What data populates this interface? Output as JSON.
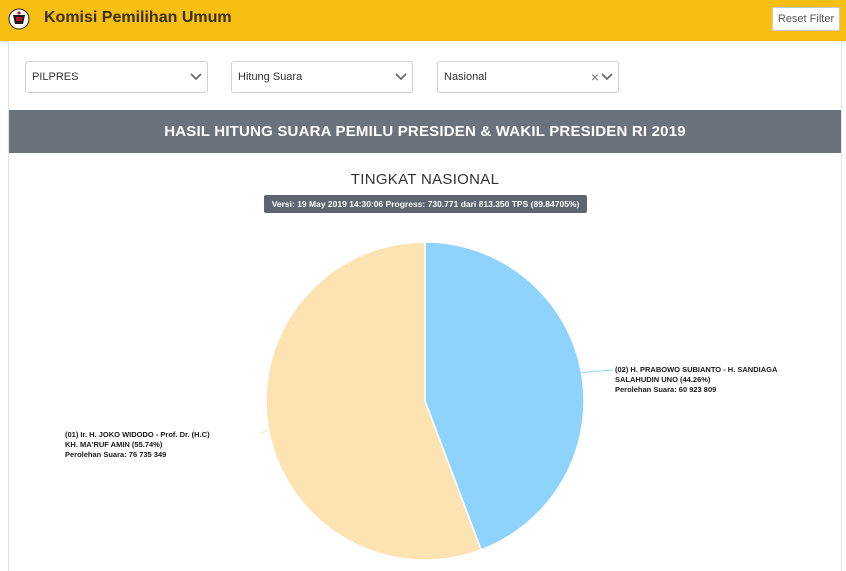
{
  "header": {
    "app_title": "Komisi Pemilihan Umum",
    "reset_label": "Reset Filter",
    "logo_icon": "kpu-logo-icon",
    "brand_color": "#f8bf13"
  },
  "filters": [
    {
      "value": "PILPRES",
      "clearable": false
    },
    {
      "value": "Hitung Suara",
      "clearable": false
    },
    {
      "value": "Nasional",
      "clearable": true
    }
  ],
  "banner_title": "HASIL HITUNG SUARA PEMILU PRESIDEN & WAKIL PRESIDEN RI 2019",
  "subtitle": "TINGKAT NASIONAL",
  "version_text": "Versi: 19 May 2019 14:30:06 Progress: 730.771 dari 813.350 TPS (89.84705%)",
  "chart_data": {
    "type": "pie",
    "title": "TINGKAT NASIONAL",
    "slices": [
      {
        "label": "(02) H. PRABOWO SUBIANTO - H. SANDIAGA SALAHUDIN UNO",
        "percent": 44.26,
        "votes": 60923809,
        "color": "#8ed3fb",
        "label_lines": [
          "(02) H. PRABOWO SUBIANTO - H. SANDIAGA",
          "SALAHUDIN UNO (44.26%)",
          "Perolehan Suara: 60 923 809"
        ]
      },
      {
        "label": "(01) Ir. H. JOKO WIDODO - Prof. Dr. (H.C) KH. MA'RUF AMIN",
        "percent": 55.74,
        "votes": 76735349,
        "color": "#fde3b2",
        "label_lines": [
          "(01) Ir. H. JOKO WIDODO - Prof. Dr. (H.C)",
          "KH. MA'RUF AMIN (55.74%)",
          "Perolehan Suara: 76 735 349"
        ]
      }
    ]
  }
}
